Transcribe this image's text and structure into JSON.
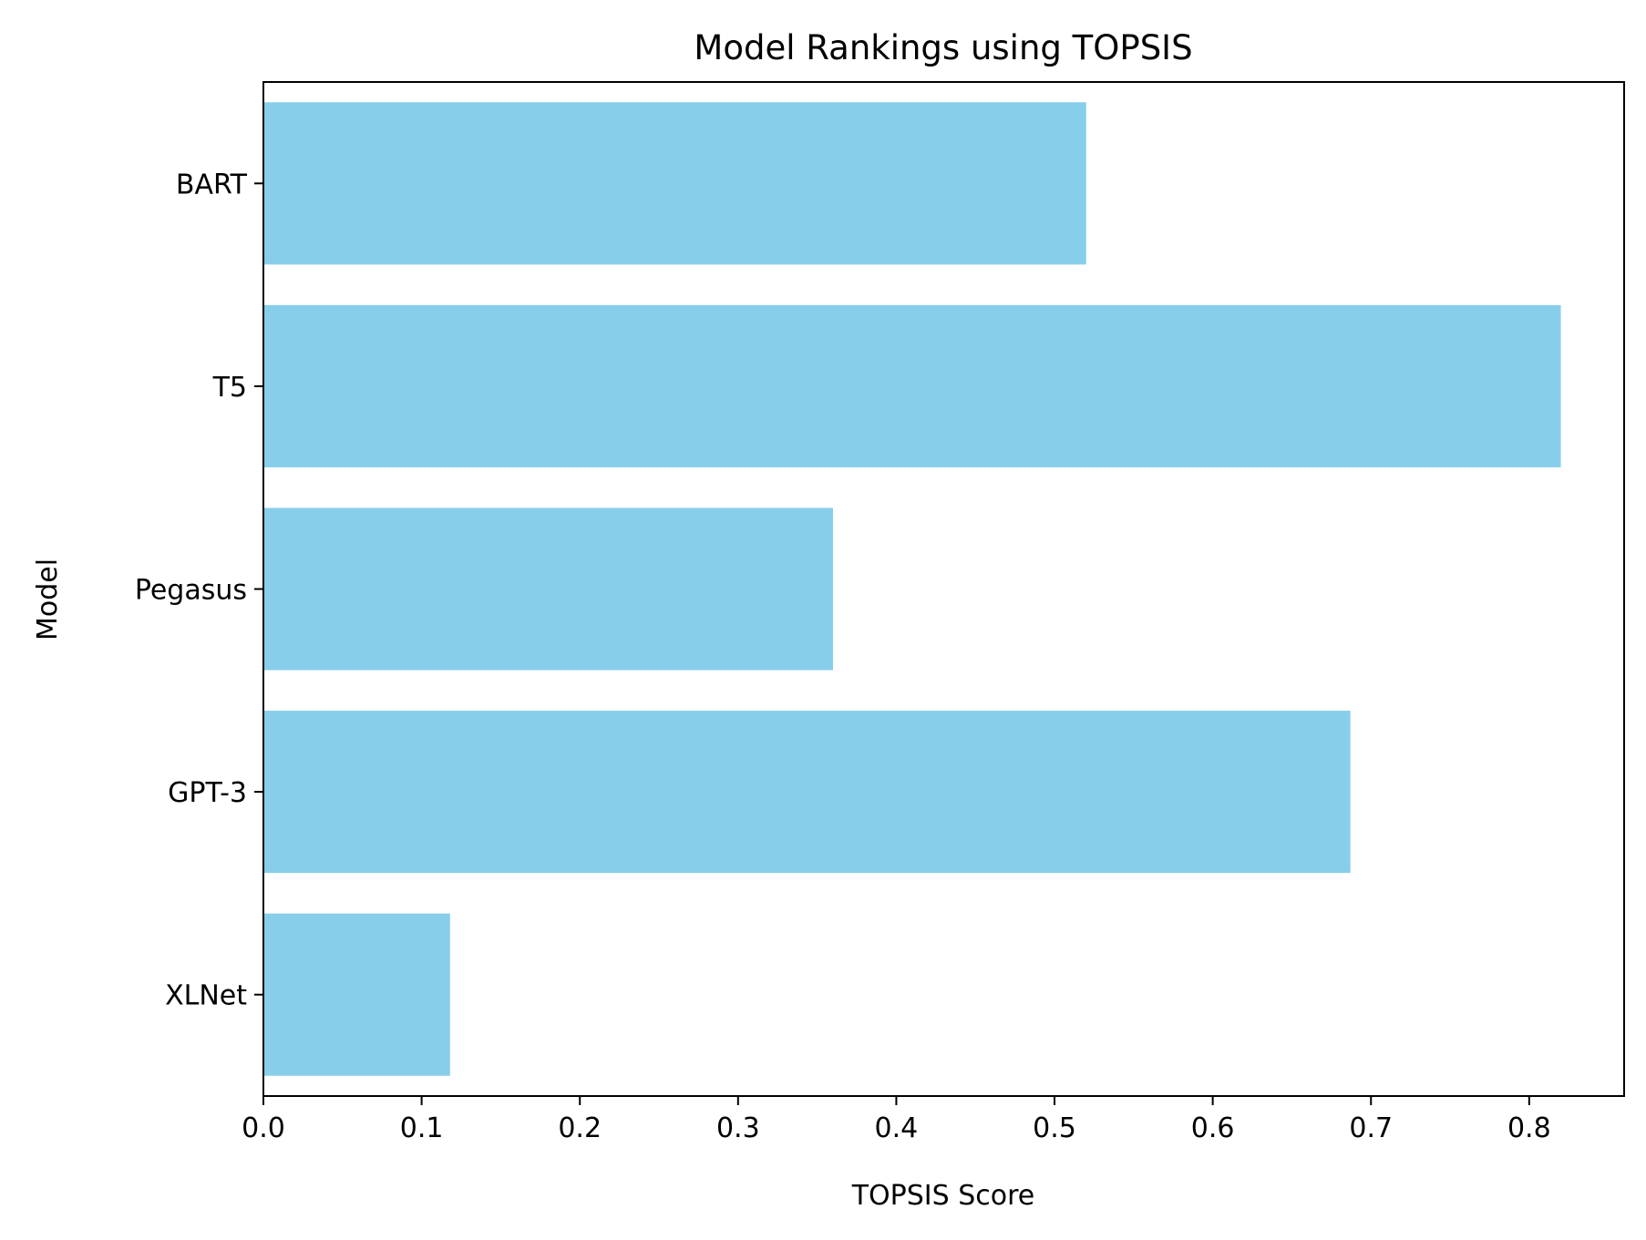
{
  "chart_data": {
    "type": "bar",
    "orientation": "horizontal",
    "title": "Model Rankings using TOPSIS",
    "xlabel": "TOPSIS Score",
    "ylabel": "Model",
    "categories": [
      "BART",
      "T5",
      "Pegasus",
      "GPT-3",
      "XLNet"
    ],
    "values": [
      0.52,
      0.82,
      0.36,
      0.687,
      0.118
    ],
    "xlim": [
      0,
      0.86
    ],
    "xticks": [
      0.0,
      0.1,
      0.2,
      0.3,
      0.4,
      0.5,
      0.6,
      0.7,
      0.8
    ],
    "xtick_labels": [
      "0.0",
      "0.1",
      "0.2",
      "0.3",
      "0.4",
      "0.5",
      "0.6",
      "0.7",
      "0.8"
    ],
    "grid": false,
    "bar_color": "#87ceeb"
  }
}
